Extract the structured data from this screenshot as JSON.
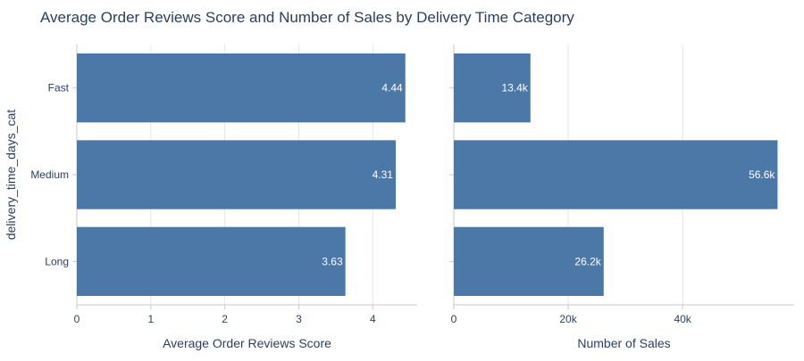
{
  "chart_data": {
    "title": "Average Order Reviews Score and Number of Sales by Delivery Time Category",
    "ylabel": "delivery_time_days_cat",
    "type": "bar",
    "orientation": "horizontal",
    "bar_color": "#4c78a8",
    "grid": true,
    "categories": [
      "Fast",
      "Medium",
      "Long"
    ],
    "panels": [
      {
        "xlabel": "Average Order Reviews Score",
        "xlim": [
          0,
          4.6
        ],
        "ticks": [
          0,
          1,
          2,
          3,
          4
        ],
        "tick_labels": [
          "0",
          "1",
          "2",
          "3",
          "4"
        ],
        "values": [
          4.44,
          4.31,
          3.63
        ],
        "labels": [
          "4.44",
          "4.31",
          "3.63"
        ]
      },
      {
        "xlabel": "Number of Sales",
        "xlim": [
          0,
          59500
        ],
        "ticks": [
          0,
          20000,
          40000
        ],
        "tick_labels": [
          "0",
          "20k",
          "40k"
        ],
        "values": [
          13400,
          56600,
          26200
        ],
        "labels": [
          "13.4k",
          "56.6k",
          "26.2k"
        ]
      }
    ]
  }
}
